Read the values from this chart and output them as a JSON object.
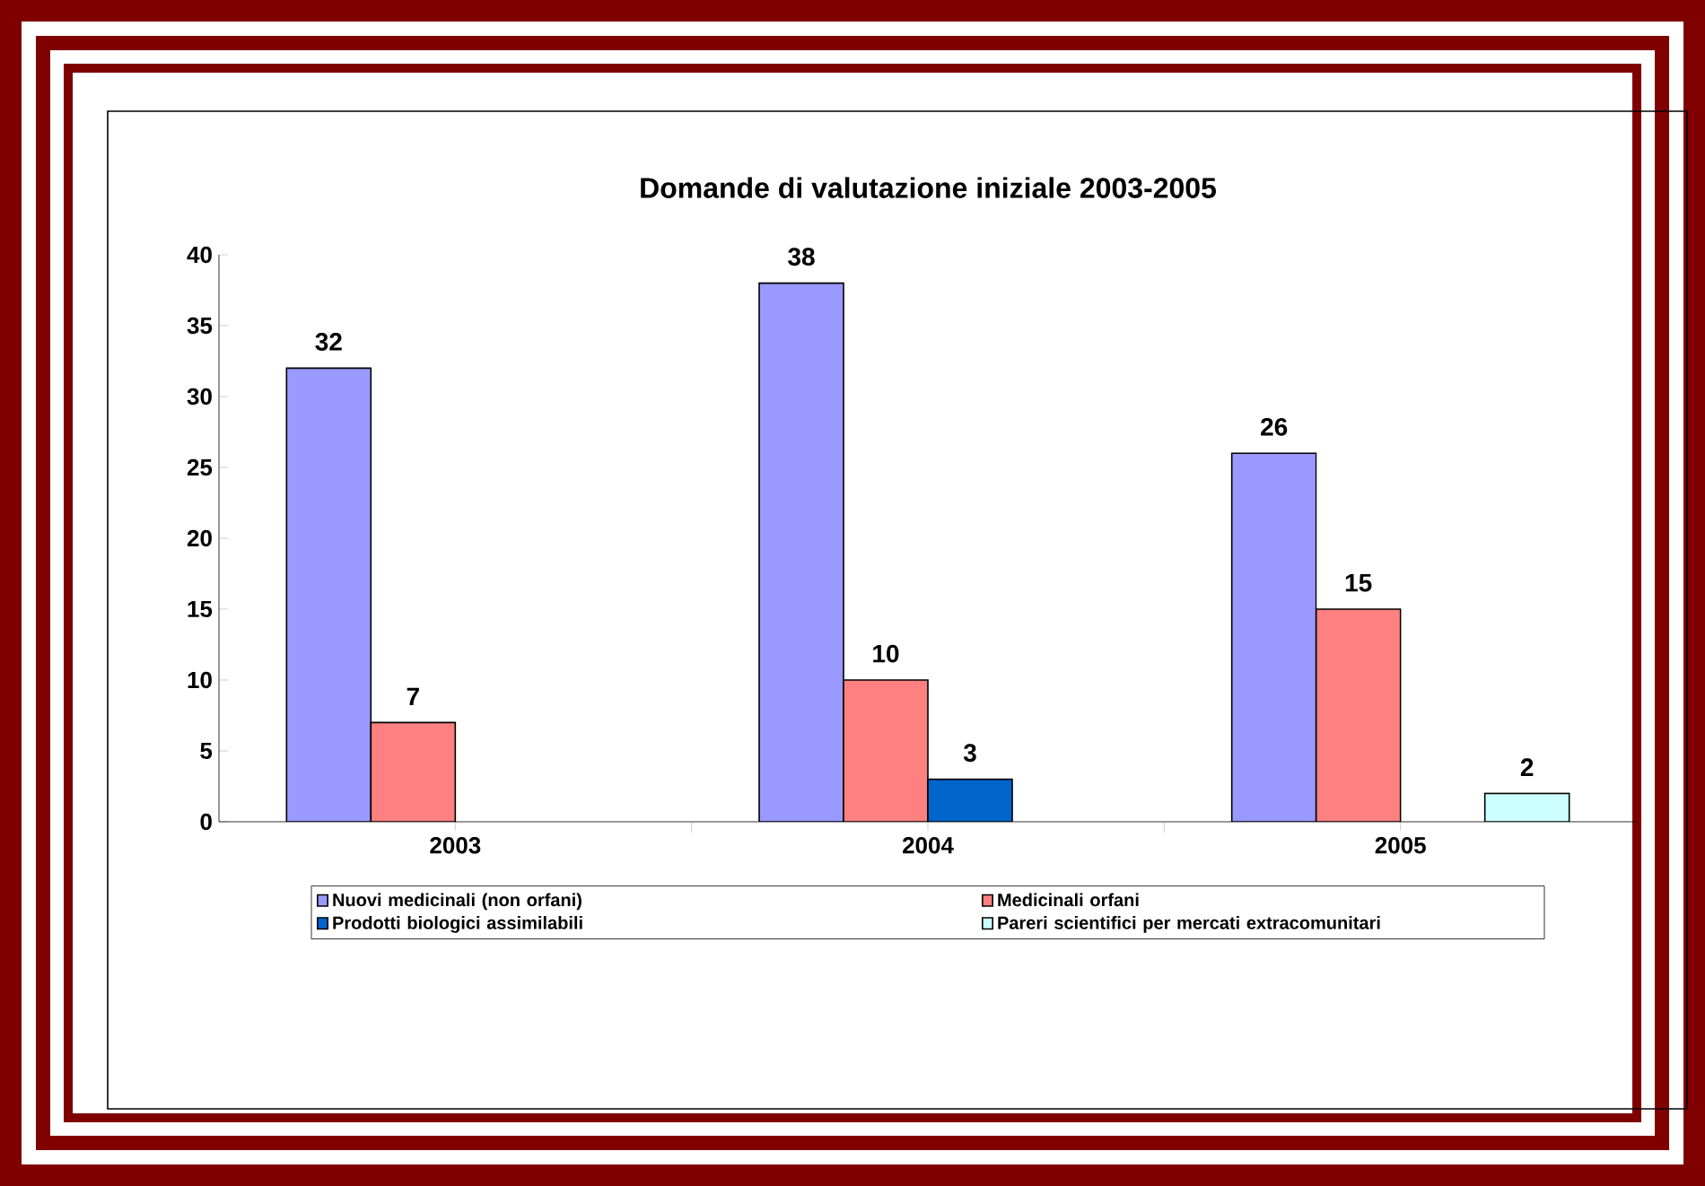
{
  "chart_data": {
    "type": "bar",
    "title": "Domande di valutazione iniziale 2003-2005",
    "categories": [
      "2003",
      "2004",
      "2005"
    ],
    "series": [
      {
        "name": "Nuovi medicinali (non orfani)",
        "color": "#9999ff",
        "values": [
          32,
          38,
          26
        ]
      },
      {
        "name": "Medicinali orfani",
        "color": "#ff8080",
        "values": [
          7,
          10,
          15
        ]
      },
      {
        "name": "Prodotti biologici assimilabili",
        "color": "#0066cc",
        "values": [
          null,
          3,
          null
        ]
      },
      {
        "name": "Pareri scientifici per mercati extracomunitari",
        "color": "#ccffff",
        "values": [
          null,
          null,
          2
        ]
      }
    ],
    "ylim": [
      0,
      40
    ],
    "yticks": [
      0,
      5,
      10,
      15,
      20,
      25,
      30,
      35,
      40
    ],
    "data_labels": true,
    "legend": "bottom",
    "grid": false
  }
}
